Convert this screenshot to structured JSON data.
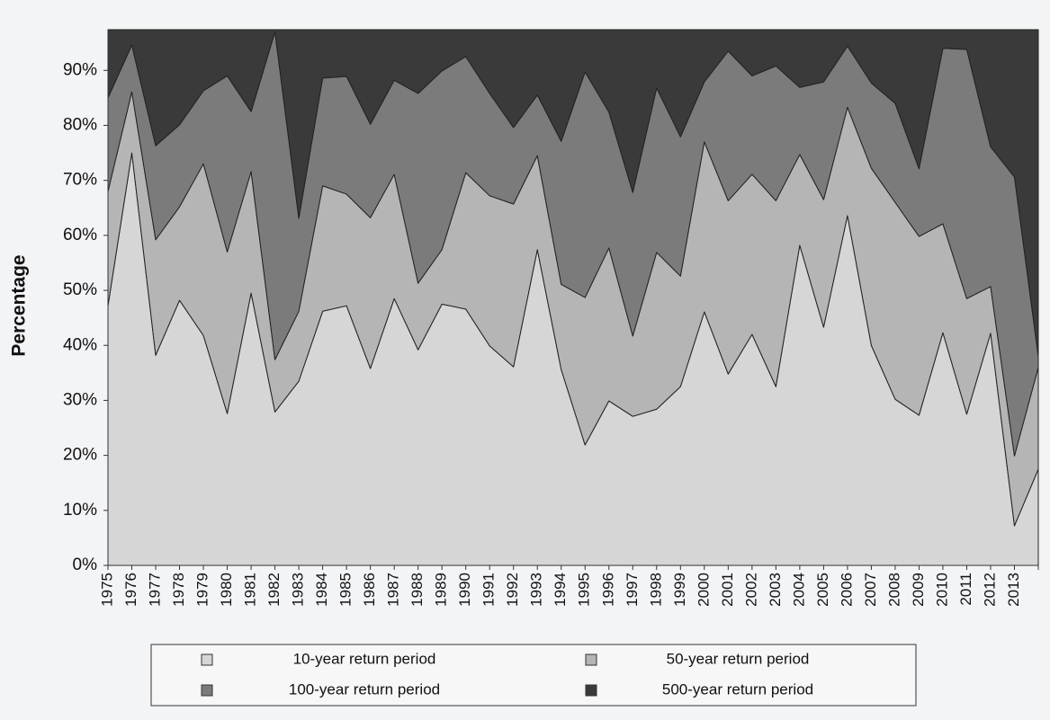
{
  "chart_data": {
    "type": "stacked_area",
    "y_label": "Percentage",
    "categories": [
      "1975",
      "1976",
      "1977",
      "1978",
      "1979",
      "1980",
      "1981",
      "1982",
      "1983",
      "1984",
      "1985",
      "1986",
      "1987",
      "1988",
      "1989",
      "1990",
      "1991",
      "1992",
      "1993",
      "1994",
      "1995",
      "1996",
      "1997",
      "1998",
      "1999",
      "2000",
      "2001",
      "2002",
      "2003",
      "2004",
      "2005",
      "2006",
      "2007",
      "2008",
      "2009",
      "2010",
      "2011",
      "2012",
      "2013",
      null
    ],
    "series": [
      {
        "name": "10-year return period",
        "color": "#d6d6d6",
        "values": [
          47.2,
          75,
          38.2,
          48.2,
          41.8,
          27.6,
          49.5,
          27.9,
          33.5,
          46.2,
          47.2,
          35.8,
          48.5,
          39.2,
          47.5,
          46.6,
          39.9,
          36.1,
          57.4,
          35.6,
          21.9,
          29.9,
          27.1,
          28.4,
          32.5,
          46.1,
          34.8,
          42,
          32.5,
          58.2,
          43.3,
          63.6,
          40,
          30.2,
          27.3,
          42.3,
          27.5,
          42.2,
          7.2,
          17.5
        ]
      },
      {
        "name": "50-year return period",
        "color": "#b5b5b5",
        "values": [
          20.8,
          11.1,
          21,
          17,
          31.2,
          29.4,
          22.1,
          9.5,
          12.7,
          22.8,
          20.3,
          27.4,
          22.6,
          12.1,
          9.9,
          24.8,
          27.3,
          29.6,
          17.1,
          15.5,
          26.8,
          27.8,
          14.6,
          28.5,
          20.1,
          30.9,
          31.5,
          29.1,
          33.8,
          16.5,
          23.2,
          19.7,
          32.2,
          35.8,
          32.5,
          19.8,
          21,
          8.5,
          12.7,
          18.5
        ]
      },
      {
        "name": "100-year return period",
        "color": "#7b7b7b",
        "values": [
          17,
          8.5,
          17.1,
          14.9,
          13.3,
          32,
          10.9,
          59.6,
          16.9,
          19.6,
          21.4,
          17,
          17.1,
          34.5,
          32.5,
          21.1,
          18.6,
          13.9,
          11,
          26,
          41,
          24.7,
          26.1,
          29.9,
          25.3,
          10.9,
          27.2,
          17.9,
          24.5,
          12.2,
          21.4,
          11.1,
          15.5,
          18,
          12.3,
          31.9,
          45.3,
          25.4,
          50.7,
          2
        ]
      },
      {
        "name": "500-year return period",
        "color": "#3a3a3a",
        "values": [
          12.4,
          2.8,
          21.1,
          17.3,
          11.1,
          8.4,
          14.9,
          0.4,
          34.3,
          8.8,
          8.5,
          17.2,
          9.2,
          11.6,
          7.5,
          4.9,
          11.6,
          17.8,
          11.9,
          20.3,
          7.7,
          15,
          29.6,
          10.6,
          19.5,
          9.5,
          3.9,
          8.4,
          6.6,
          10.5,
          9.5,
          3,
          9.7,
          13.4,
          25.3,
          3.4,
          3.6,
          21.3,
          26.8,
          59.4
        ]
      }
    ],
    "ylim": [
      0,
      97.4
    ],
    "yticks": [
      {
        "value": 0,
        "label": "0%"
      },
      {
        "value": 10,
        "label": "10%"
      },
      {
        "value": 20,
        "label": "20%"
      },
      {
        "value": 30,
        "label": "30%"
      },
      {
        "value": 40,
        "label": "40%"
      },
      {
        "value": 50,
        "label": "50%"
      },
      {
        "value": 60,
        "label": "60%"
      },
      {
        "value": 70,
        "label": "70%"
      },
      {
        "value": 80,
        "label": "80%"
      },
      {
        "value": 90,
        "label": "90%"
      }
    ],
    "legend": "bottom"
  }
}
